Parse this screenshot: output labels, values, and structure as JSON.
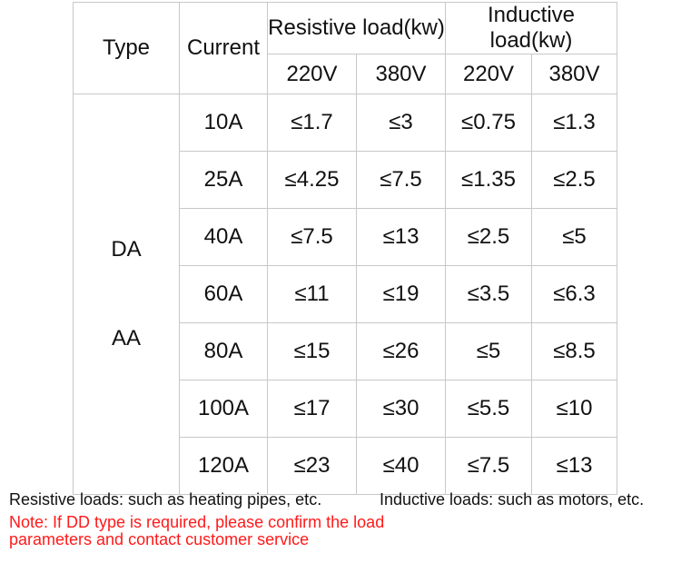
{
  "table": {
    "header": {
      "type": "Type",
      "current": "Current",
      "resistive": "Resistive load(kw)",
      "inductive": "Inductive load(kw)",
      "voltages": [
        "220V",
        "380V",
        "220V",
        "380V"
      ]
    },
    "types": [
      "DA",
      "AA"
    ],
    "rows": [
      {
        "current": "10A",
        "res220": "≤1.7",
        "res380": "≤3",
        "ind220": "≤0.75",
        "ind380": "≤1.3"
      },
      {
        "current": "25A",
        "res220": "≤4.25",
        "res380": "≤7.5",
        "ind220": "≤1.35",
        "ind380": "≤2.5"
      },
      {
        "current": "40A",
        "res220": "≤7.5",
        "res380": "≤13",
        "ind220": "≤2.5",
        "ind380": "≤5"
      },
      {
        "current": "60A",
        "res220": "≤11",
        "res380": "≤19",
        "ind220": "≤3.5",
        "ind380": "≤6.3"
      },
      {
        "current": "80A",
        "res220": "≤15",
        "res380": "≤26",
        "ind220": "≤5",
        "ind380": "≤8.5"
      },
      {
        "current": "100A",
        "res220": "≤17",
        "res380": "≤30",
        "ind220": "≤5.5",
        "ind380": "≤10"
      },
      {
        "current": "120A",
        "res220": "≤23",
        "res380": "≤40",
        "ind220": "≤7.5",
        "ind380": "≤13"
      }
    ]
  },
  "notes": {
    "resistive": "Resistive loads: such as heating pipes, etc.",
    "inductive": "Inductive loads: such as motors, etc.",
    "warning_line1": "Note: If DD type is required, please confirm the load",
    "warning_line2": "parameters and contact customer service"
  },
  "colors": {
    "warning": "#ff1a1a",
    "border": "#c8c8c8"
  }
}
